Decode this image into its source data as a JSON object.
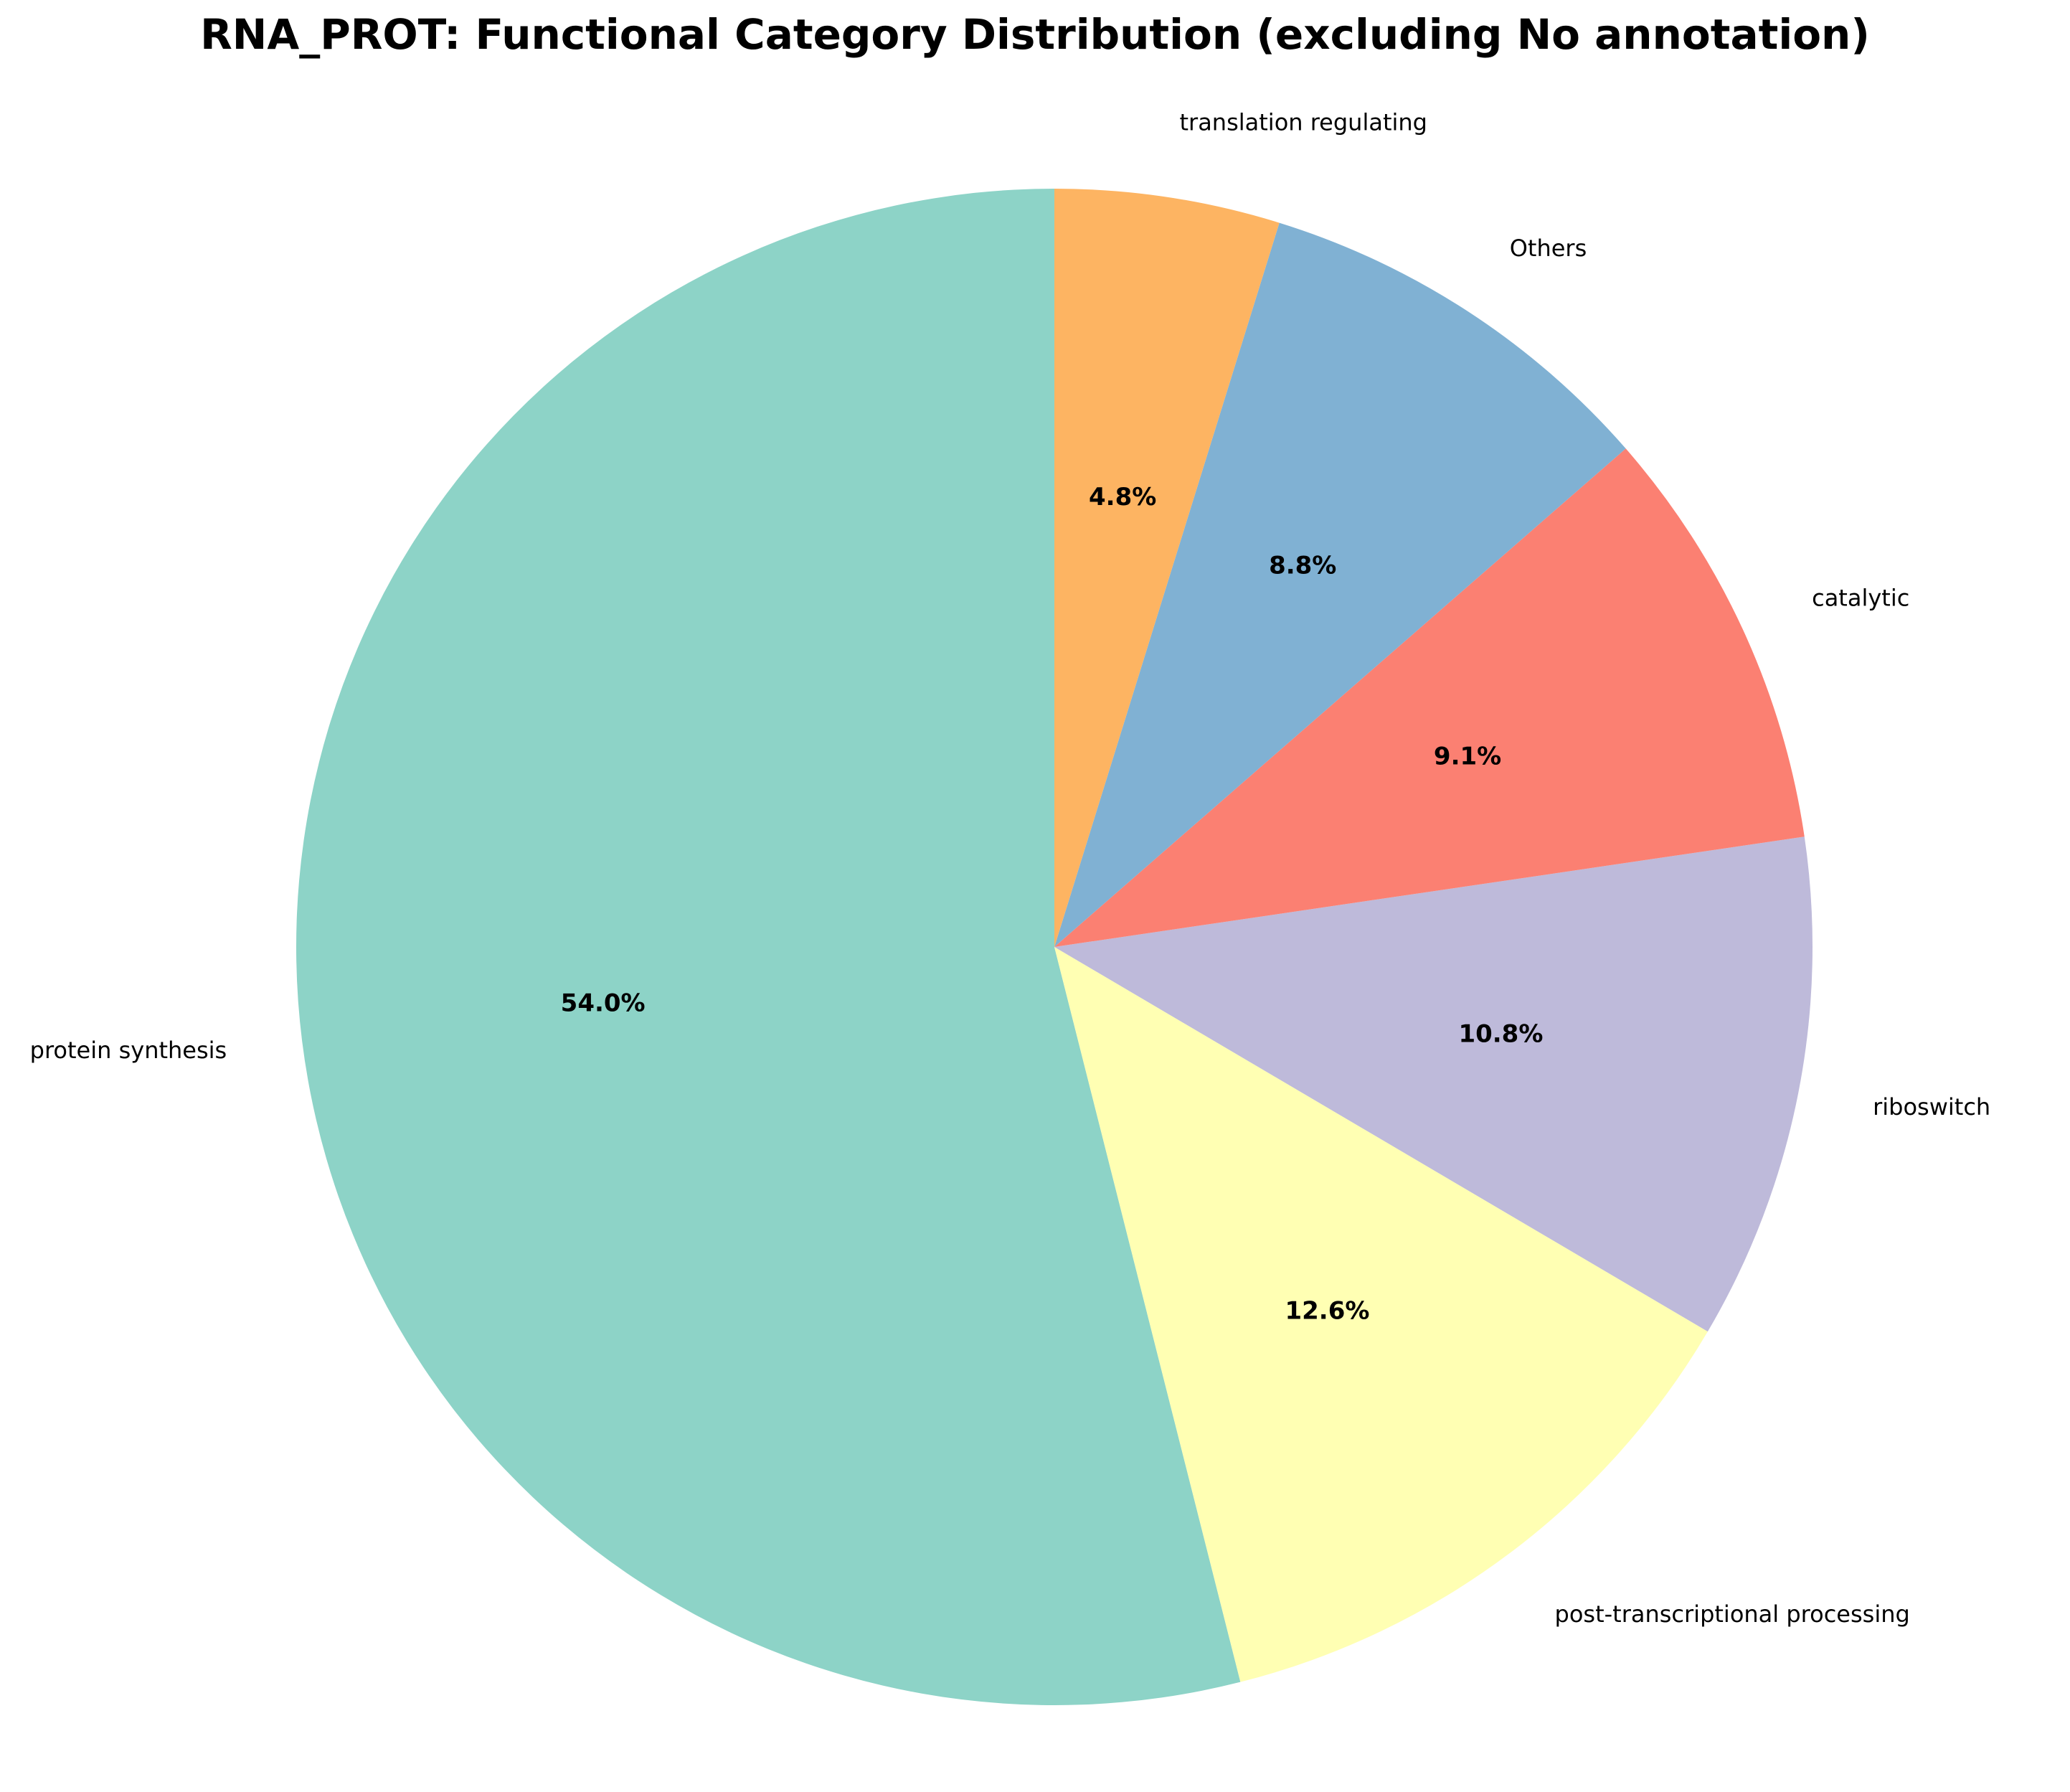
{
  "chart_data": {
    "type": "pie",
    "title": "RNA_PROT: Functional Category Distribution (excluding No annotation)",
    "start_angle_deg": 90,
    "direction": "counterclockwise",
    "slices": [
      {
        "label": "protein synthesis",
        "value": 54.0,
        "pct_label": "54.0%",
        "color": "#8dd3c7"
      },
      {
        "label": "post-transcriptional processing",
        "value": 12.6,
        "pct_label": "12.6%",
        "color": "#ffffb3"
      },
      {
        "label": "riboswitch",
        "value": 10.8,
        "pct_label": "10.8%",
        "color": "#bebada"
      },
      {
        "label": "catalytic",
        "value": 9.1,
        "pct_label": "9.1%",
        "color": "#fb8072"
      },
      {
        "label": "Others",
        "value": 8.8,
        "pct_label": "8.8%",
        "color": "#80b1d3"
      },
      {
        "label": "translation regulating",
        "value": 4.8,
        "pct_label": "4.8%",
        "color": "#fdb462"
      }
    ]
  }
}
